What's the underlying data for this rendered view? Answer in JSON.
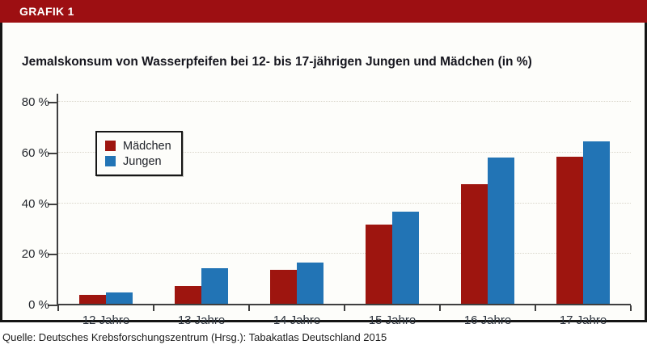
{
  "header": {
    "label": "GRAFIK 1"
  },
  "title": "Jemalskonsum von Wasserpfeifen bei 12- bis 17-jährigen Jungen und Mädchen (in %)",
  "source": "Quelle: Deutsches Krebsforschungszentrum (Hrsg.): Tabakatlas Deutschland 2015",
  "colors": {
    "header_bg": "#9d0f12",
    "maedchen": "#9e150f",
    "jungen": "#2274b5",
    "figure_bg": "#fdfdfa",
    "axis": "#3f3f3f",
    "gridline": "#d9d6ca"
  },
  "chart_data": {
    "type": "bar",
    "title": "Jemalskonsum von Wasserpfeifen bei 12- bis 17-jährigen Jungen und Mädchen (in %)",
    "categories": [
      "12 Jahre",
      "13 Jahre",
      "14 Jahre",
      "15 Jahre",
      "16 Jahre",
      "17 Jahre"
    ],
    "series": [
      {
        "name": "Mädchen",
        "color": "#9e150f",
        "values": [
          3.4,
          7.1,
          13.4,
          31.2,
          47.3,
          58.2
        ]
      },
      {
        "name": "Jungen",
        "color": "#2274b5",
        "values": [
          4.4,
          14.0,
          16.2,
          36.3,
          57.7,
          64.2
        ]
      }
    ],
    "xlabel": "",
    "ylabel": "",
    "yticks": [
      "0 %",
      "20 %",
      "40 %",
      "60 %",
      "80 %"
    ],
    "ytick_values": [
      0,
      20,
      40,
      60,
      80
    ],
    "ylim": [
      0,
      83
    ],
    "grid": "horizontal-dotted",
    "legend_position": "upper-left-inside"
  }
}
